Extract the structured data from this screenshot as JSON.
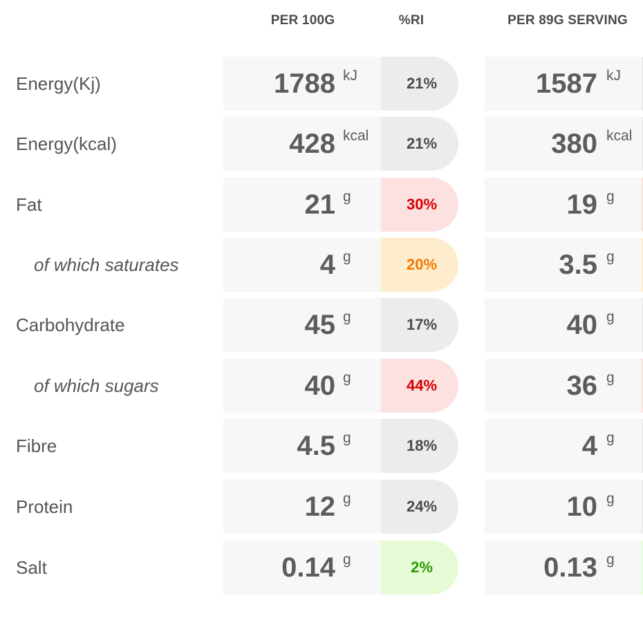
{
  "headers": {
    "per_100g": "PER 100G",
    "ri": "%RI",
    "per_serving": "PER 89G SERVING"
  },
  "colors": {
    "red_bg": "#fde0e0",
    "red_text": "#d40000",
    "amber_bg": "#feedcd",
    "amber_text": "#f07800",
    "green_bg": "#e5fbd6",
    "green_text": "#2d9a00",
    "neutral_bg": "#ececec"
  },
  "rows": [
    {
      "label": "Energy(Kj)",
      "sub": false,
      "per100": "1788",
      "unit": "kJ",
      "ri": "21%",
      "ri_level": "neutral",
      "serving": "1587"
    },
    {
      "label": "Energy(kcal)",
      "sub": false,
      "per100": "428",
      "unit": "kcal",
      "ri": "21%",
      "ri_level": "neutral",
      "serving": "380"
    },
    {
      "label": "Fat",
      "sub": false,
      "per100": "21",
      "unit": "g",
      "ri": "30%",
      "ri_level": "red",
      "serving": "19"
    },
    {
      "label": "of which saturates",
      "sub": true,
      "per100": "4",
      "unit": "g",
      "ri": "20%",
      "ri_level": "amber",
      "serving": "3.5"
    },
    {
      "label": "Carbohydrate",
      "sub": false,
      "per100": "45",
      "unit": "g",
      "ri": "17%",
      "ri_level": "neutral",
      "serving": "40"
    },
    {
      "label": "of which sugars",
      "sub": true,
      "per100": "40",
      "unit": "g",
      "ri": "44%",
      "ri_level": "red",
      "serving": "36"
    },
    {
      "label": "Fibre",
      "sub": false,
      "per100": "4.5",
      "unit": "g",
      "ri": "18%",
      "ri_level": "neutral",
      "serving": "4"
    },
    {
      "label": "Protein",
      "sub": false,
      "per100": "12",
      "unit": "g",
      "ri": "24%",
      "ri_level": "neutral",
      "serving": "10"
    },
    {
      "label": "Salt",
      "sub": false,
      "per100": "0.14",
      "unit": "g",
      "ri": "2%",
      "ri_level": "green",
      "serving": "0.13"
    }
  ]
}
